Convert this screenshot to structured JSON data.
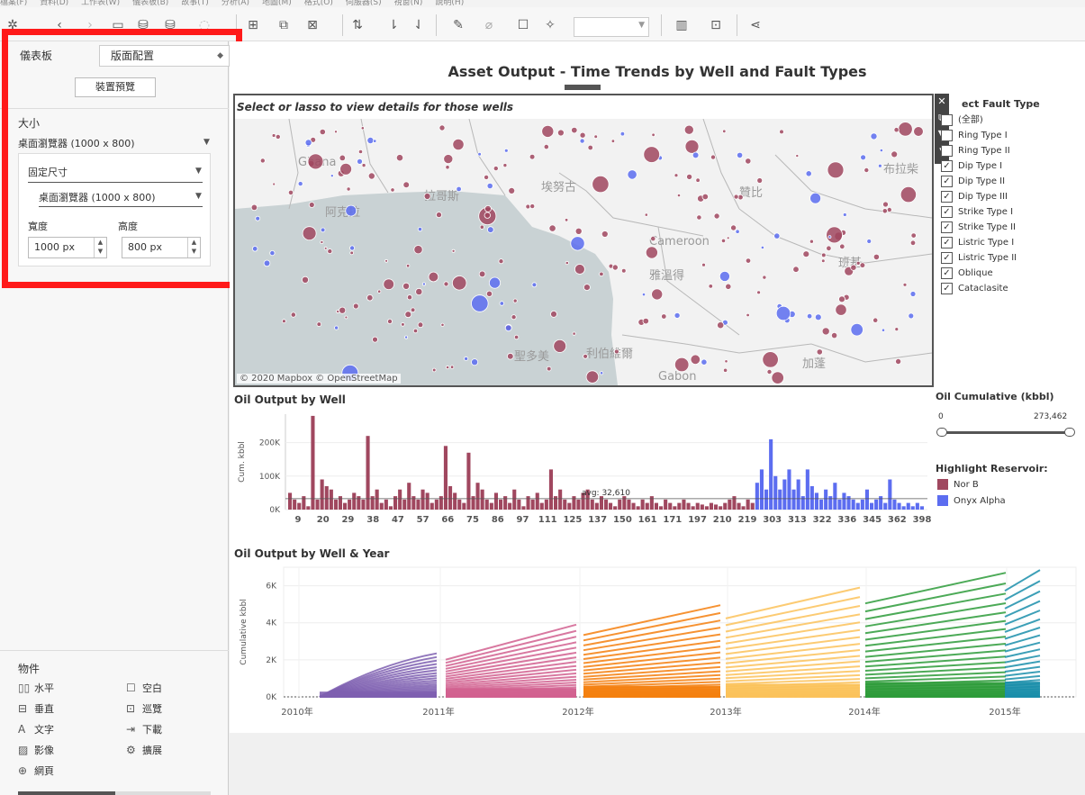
{
  "menubar": [
    "檔案(F)",
    "資料(D)",
    "工作表(W)",
    "儀表板(B)",
    "故事(T)",
    "分析(A)",
    "地圖(M)",
    "格式(O)",
    "伺服器(S)",
    "視窗(N)",
    "說明(H)"
  ],
  "left_panel": {
    "tab_dashboard": "儀表板",
    "tab_layout": "版面配置",
    "device_preview": "裝置預覽",
    "size_label": "大小",
    "size_value": "桌面瀏覽器 (1000 x 800)",
    "size_mode": "固定尺寸",
    "size_preset": "桌面瀏覽器 (1000 x 800)",
    "width_label": "寬度",
    "height_label": "高度",
    "width_value": "1000 px",
    "height_value": "800 px",
    "objects_title": "物件",
    "objects": [
      {
        "label": "水平",
        "icon": "horizontal-icon"
      },
      {
        "label": "空白",
        "icon": "blank-icon"
      },
      {
        "label": "垂直",
        "icon": "vertical-icon"
      },
      {
        "label": "巡覽",
        "icon": "navigation-icon"
      },
      {
        "label": "文字",
        "icon": "text-icon"
      },
      {
        "label": "下載",
        "icon": "download-icon"
      },
      {
        "label": "影像",
        "icon": "image-icon"
      },
      {
        "label": "擴展",
        "icon": "extension-icon"
      },
      {
        "label": "網頁",
        "icon": "web-icon"
      }
    ]
  },
  "dashboard": {
    "title": "Asset Output - Time Trends by Well and Fault Types",
    "map": {
      "title": "Select or lasso to view details for those wells",
      "credit": "© 2020 Mapbox © OpenStreetMap",
      "places": [
        "Ghana",
        "阿克拉",
        "拉哥斯",
        "埃努古",
        "Cameroon",
        "雅溫得",
        "班基",
        "Gabon",
        "加蓬",
        "贊比",
        "布拉柴",
        "聖多美",
        "利伯維爾"
      ]
    },
    "fault_filter": {
      "title": "ect Fault Type",
      "items": [
        {
          "label": "(全部)",
          "checked": false
        },
        {
          "label": "Ring Type I",
          "checked": false
        },
        {
          "label": "Ring Type II",
          "checked": false
        },
        {
          "label": "Dip Type I",
          "checked": true
        },
        {
          "label": "Dip Type II",
          "checked": true
        },
        {
          "label": "Dip Type III",
          "checked": true
        },
        {
          "label": "Strike Type I",
          "checked": true
        },
        {
          "label": "Strike Type II",
          "checked": true
        },
        {
          "label": "Listric Type I",
          "checked": true
        },
        {
          "label": "Listric Type II",
          "checked": true
        },
        {
          "label": "Oblique",
          "checked": true
        },
        {
          "label": "Cataclasite",
          "checked": true
        }
      ]
    },
    "oil_cumulative": {
      "title": "Oil Cumulative (kbbl)",
      "min": "0",
      "max": "273,462"
    },
    "highlight": {
      "title": "Highlight Reservoir:",
      "items": [
        {
          "label": "Nor B",
          "color": "#a0475f"
        },
        {
          "label": "Onyx Alpha",
          "color": "#5c6df0"
        }
      ]
    },
    "well_chart_title": "Oil Output by Well",
    "year_chart_title": "Oil Output by Well & Year"
  },
  "chart_data": [
    {
      "type": "bar",
      "title": "Oil Output by Well",
      "ylabel": "Cum. kbbl",
      "yticks": [
        "0K",
        "100K",
        "200K"
      ],
      "ylim": [
        0,
        285000
      ],
      "average": 32610,
      "average_label": "avg: 32,610",
      "x_tick_labels": [
        "9",
        "20",
        "29",
        "38",
        "47",
        "57",
        "66",
        "75",
        "86",
        "97",
        "111",
        "125",
        "137",
        "150",
        "161",
        "171",
        "197",
        "210",
        "219",
        "303",
        "313",
        "322",
        "336",
        "345",
        "362",
        "398"
      ],
      "series": [
        {
          "name": "Nor B",
          "color": "#a0475f",
          "values": [
            50,
            30,
            20,
            40,
            10,
            280,
            30,
            90,
            70,
            60,
            30,
            40,
            20,
            30,
            50,
            40,
            30,
            220,
            40,
            60,
            20,
            30,
            10,
            40,
            60,
            30,
            80,
            40,
            30,
            60,
            50,
            20,
            30,
            40,
            190,
            70,
            50,
            30,
            20,
            170,
            40,
            80,
            60,
            30,
            20,
            50,
            30,
            40,
            20,
            60,
            30,
            10,
            40,
            30,
            50,
            20,
            30,
            120,
            40,
            60,
            30,
            20,
            40,
            30,
            50,
            60,
            30,
            20,
            40,
            30,
            20,
            10,
            30,
            40,
            30,
            20,
            10,
            30,
            20,
            40,
            20,
            10,
            30,
            20,
            10,
            20,
            30,
            20,
            10,
            20,
            15,
            10,
            20,
            15,
            10,
            20,
            30,
            40,
            20,
            10,
            30,
            20
          ]
        },
        {
          "name": "Onyx Alpha",
          "color": "#5c6df0",
          "values": [
            80,
            120,
            60,
            210,
            100,
            60,
            90,
            120,
            60,
            90,
            40,
            120,
            70,
            50,
            30,
            60,
            40,
            80,
            30,
            50,
            40,
            30,
            20,
            30,
            60,
            20,
            30,
            40,
            20,
            90,
            30,
            20,
            10,
            20,
            10,
            20,
            10
          ]
        }
      ]
    },
    {
      "type": "line",
      "title": "Oil Output by Well & Year",
      "ylabel": "Cumulative kbbl",
      "yticks": [
        "0K",
        "2K",
        "4K",
        "6K"
      ],
      "ylim": [
        0,
        7000
      ],
      "x_tick_labels": [
        "2010年",
        "2011年",
        "2012年",
        "2013年",
        "2014年",
        "2015年"
      ],
      "segments": [
        {
          "year": "2010",
          "color": "#7e5fb0",
          "max": 2350
        },
        {
          "year": "2011",
          "color": "#d1608f",
          "max": 3900
        },
        {
          "year": "2012",
          "color": "#f47f0e",
          "max": 4950
        },
        {
          "year": "2013",
          "color": "#fbc25a",
          "max": 5900
        },
        {
          "year": "2014",
          "color": "#2d9b3a",
          "max": 6700
        },
        {
          "year": "2015",
          "color": "#1a8eaa",
          "max": 6850
        }
      ]
    }
  ]
}
